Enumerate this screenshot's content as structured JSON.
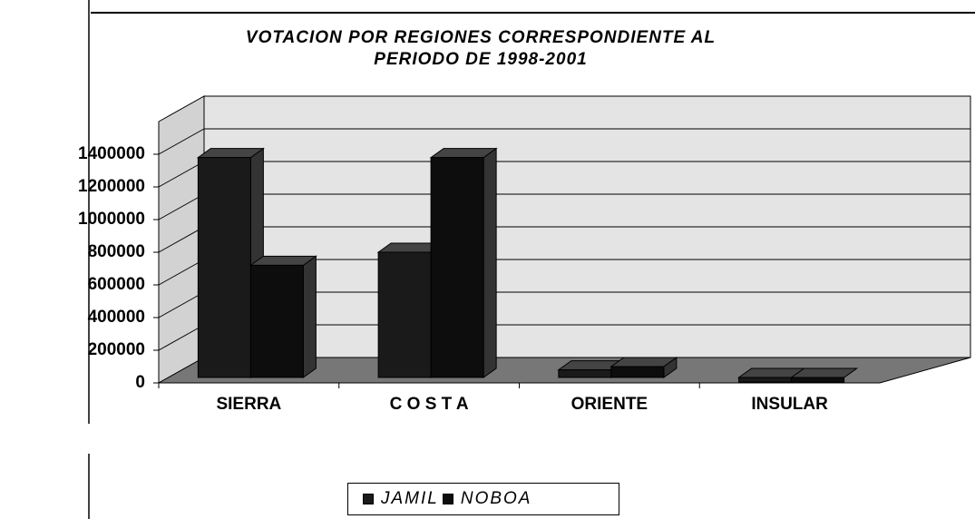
{
  "chart_data": {
    "type": "bar3d",
    "title": "VOTACION POR REGIONES CORRESPONDIENTE AL PERIODO DE 1998-2001",
    "categories": [
      "SIERRA",
      "C O S T A",
      "ORIENTE",
      "INSULAR"
    ],
    "series": [
      {
        "name": "JAMIL",
        "color": "#1a1a1a",
        "values": [
          1380000,
          800000,
          80000,
          5000
        ]
      },
      {
        "name": "NOBOA",
        "color": "#0d0d0d",
        "values": [
          720000,
          1380000,
          100000,
          5000
        ]
      }
    ],
    "ylim": [
      0,
      1600000
    ],
    "yticks": [
      0,
      200000,
      400000,
      600000,
      800000,
      1000000,
      1200000,
      1400000
    ],
    "grid": true,
    "legend": "bottom"
  }
}
